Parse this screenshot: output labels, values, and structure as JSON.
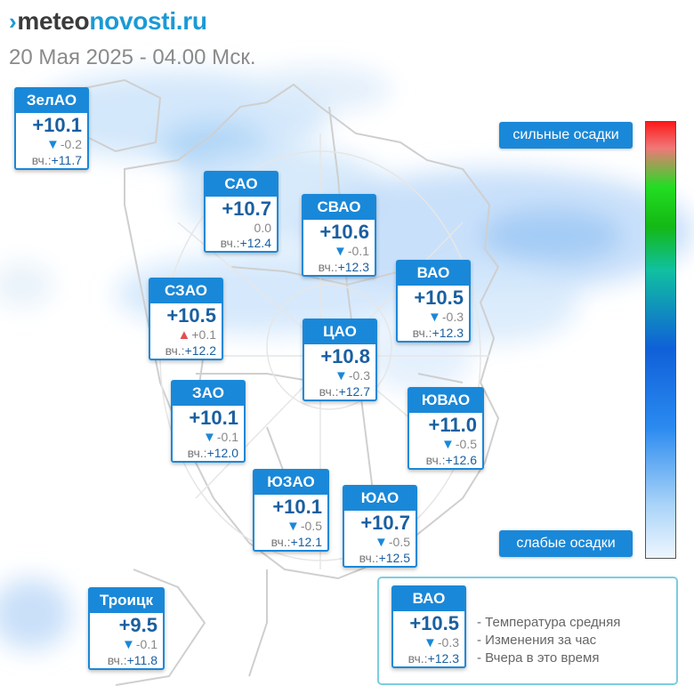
{
  "brand": {
    "prefix": "meteo",
    "suffix": "novosti.ru"
  },
  "date_line": "20 Мая 2025 - 04.00 Мск.",
  "scale": {
    "top_label": "сильные осадки",
    "bottom_label": "слабые осадки"
  },
  "yd_prefix": "вч.:",
  "districts": [
    {
      "name": "ЗелАО",
      "temp": "+10.1",
      "dir": "down",
      "change": "-0.2",
      "yesterday": "+11.7"
    },
    {
      "name": "САО",
      "temp": "+10.7",
      "dir": "none",
      "change": "0.0",
      "yesterday": "+12.4"
    },
    {
      "name": "СВАО",
      "temp": "+10.6",
      "dir": "down",
      "change": "-0.1",
      "yesterday": "+12.3"
    },
    {
      "name": "ВАО",
      "temp": "+10.5",
      "dir": "down",
      "change": "-0.3",
      "yesterday": "+12.3"
    },
    {
      "name": "СЗАО",
      "temp": "+10.5",
      "dir": "up",
      "change": "+0.1",
      "yesterday": "+12.2"
    },
    {
      "name": "ЦАО",
      "temp": "+10.8",
      "dir": "down",
      "change": "-0.3",
      "yesterday": "+12.7"
    },
    {
      "name": "ЗАО",
      "temp": "+10.1",
      "dir": "down",
      "change": "-0.1",
      "yesterday": "+12.0"
    },
    {
      "name": "ЮВАО",
      "temp": "+11.0",
      "dir": "down",
      "change": "-0.5",
      "yesterday": "+12.6"
    },
    {
      "name": "ЮЗАО",
      "temp": "+10.1",
      "dir": "down",
      "change": "-0.5",
      "yesterday": "+12.1"
    },
    {
      "name": "ЮАО",
      "temp": "+10.7",
      "dir": "down",
      "change": "-0.5",
      "yesterday": "+12.5"
    },
    {
      "name": "Троицк",
      "temp": "+9.5",
      "dir": "down",
      "change": "-0.1",
      "yesterday": "+11.8"
    }
  ],
  "legend": {
    "sample": {
      "name": "ВАО",
      "temp": "+10.5",
      "dir": "down",
      "change": "-0.3",
      "yesterday": "+12.3"
    },
    "lines": [
      "- Температура средняя",
      "- Изменения за час",
      "- Вчера в это время"
    ]
  }
}
